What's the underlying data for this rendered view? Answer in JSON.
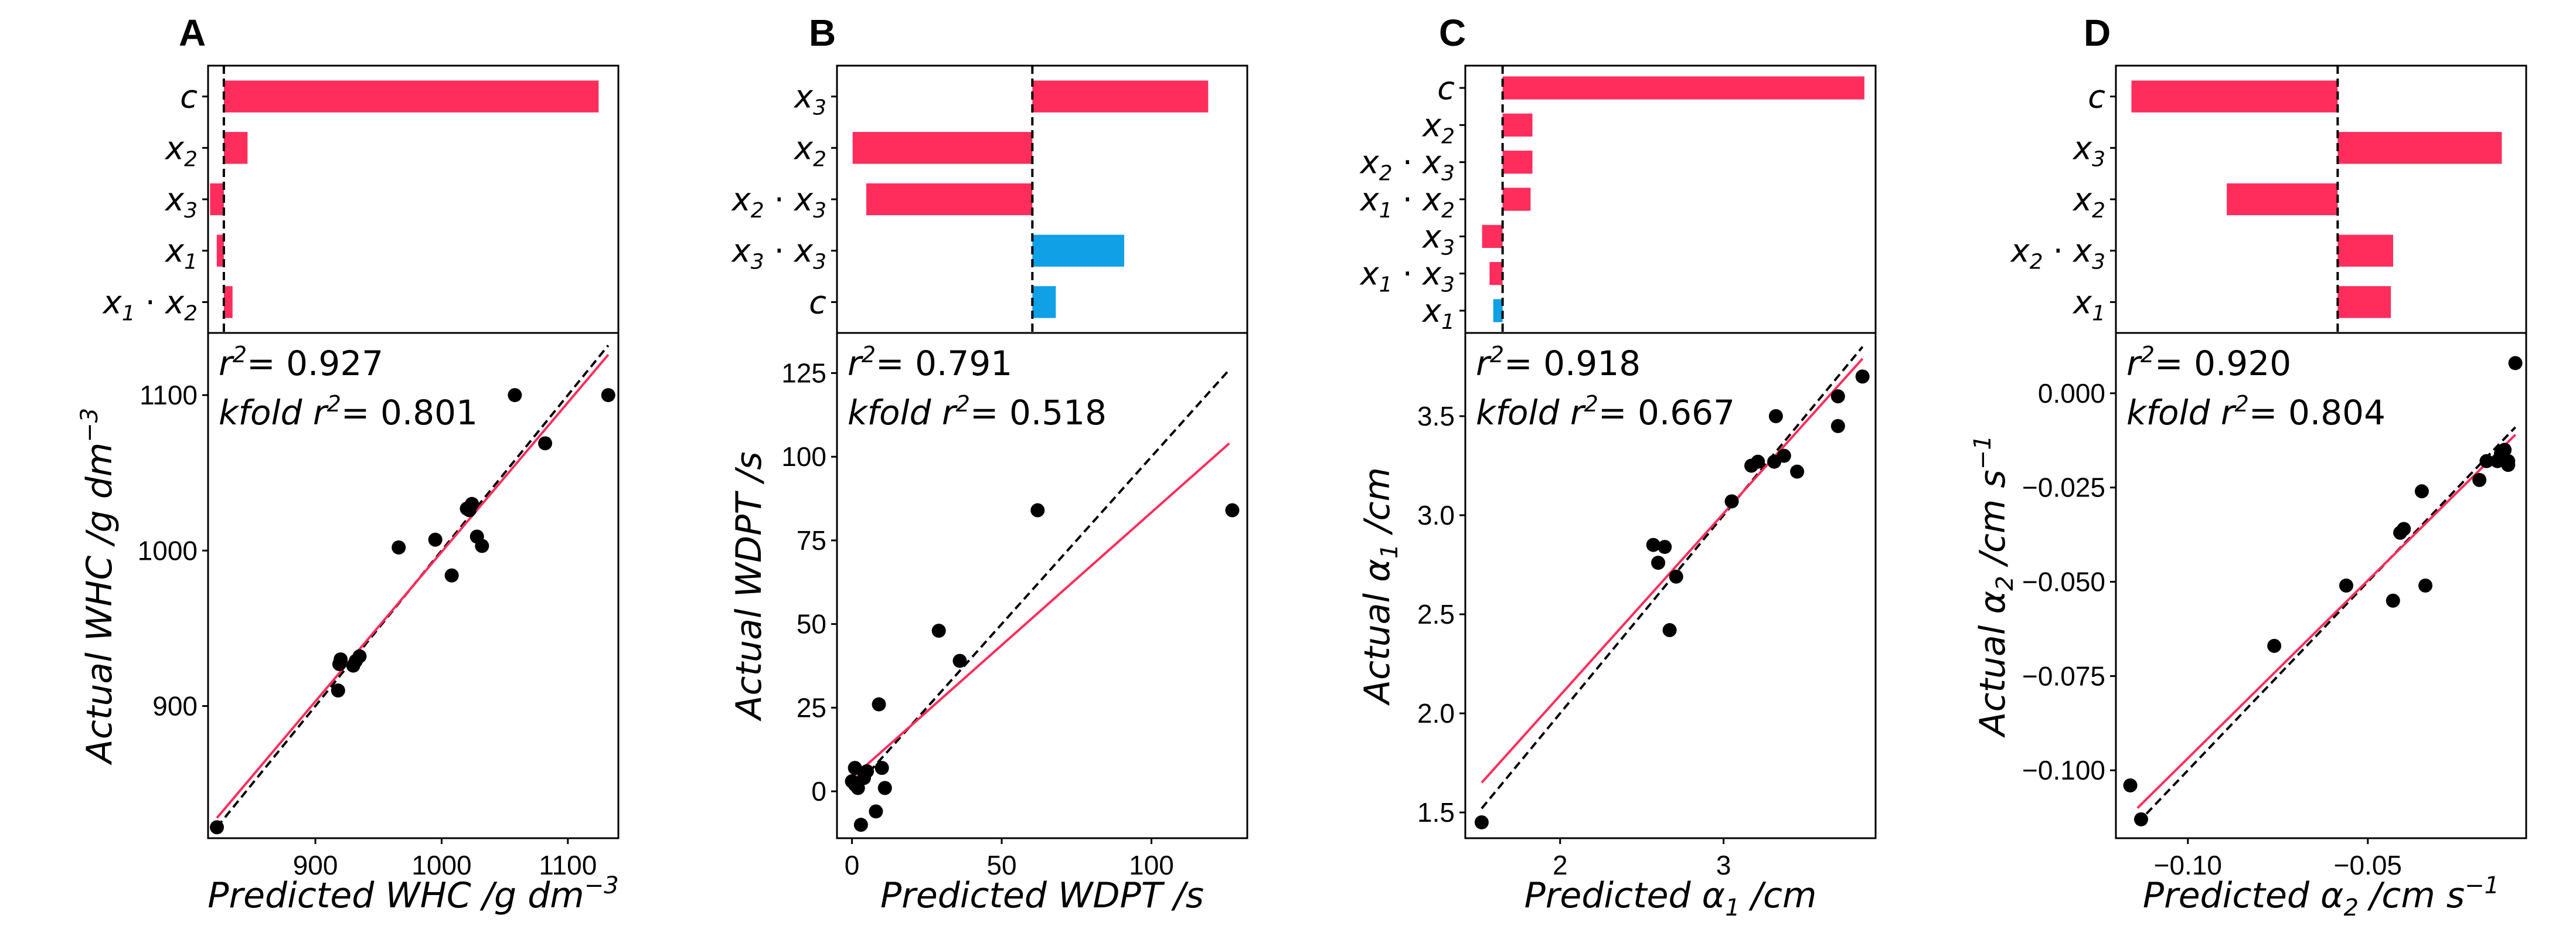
{
  "colors": {
    "positive": "#ff2d5c",
    "negative": "#0fa0e6",
    "fit_line": "#ff2d5c",
    "identity_line": "#000000",
    "points": "#000000"
  },
  "chart_data": [
    {
      "panel_label": "A",
      "bar": {
        "type": "bar",
        "orientation": "horizontal",
        "zero_line": "dashed",
        "xlim": [
          -0.04,
          1.0
        ],
        "terms": [
          {
            "base": "c",
            "label": "c",
            "value": 0.95,
            "sign": "positive"
          },
          {
            "base": "x",
            "sub": "2",
            "label": "x2",
            "value": 0.06,
            "sign": "positive"
          },
          {
            "base": "x",
            "sub": "3",
            "label": "x3",
            "value": -0.035,
            "sign": "positive"
          },
          {
            "base": "x",
            "sub": "1",
            "label": "x1",
            "value": -0.018,
            "sign": "positive"
          },
          {
            "base": "x",
            "sub": "1",
            "base2": "x",
            "sub2": "2",
            "label": "x1 · x2",
            "value": 0.022,
            "sign": "positive"
          }
        ]
      },
      "scatter": {
        "type": "scatter",
        "r2_text": "= 0.927",
        "kfold_text": "= 0.801",
        "xlabel": {
          "prefix": "Predicted ",
          "sym": "WHC",
          "unit": " /g dm",
          "unit_sup": "−3"
        },
        "ylabel": {
          "prefix": "Actual ",
          "sym": "WHC",
          "unit": " /g dm",
          "unit_sup": "−3"
        },
        "xlim": [
          815,
          1140
        ],
        "ylim": [
          815,
          1140
        ],
        "xticks": [
          900,
          1000,
          1100
        ],
        "yticks": [
          900,
          1000,
          1100
        ],
        "tick_labels_x": [
          "900",
          "1000",
          "1100"
        ],
        "tick_labels_y": [
          "900",
          "1000",
          "1100"
        ],
        "identity": [
          [
            822,
            822
          ],
          [
            1132,
            1132
          ]
        ],
        "fit": [
          [
            822,
            828
          ],
          [
            1132,
            1126
          ]
        ],
        "points": [
          [
            822,
            822
          ],
          [
            918,
            910
          ],
          [
            919,
            927
          ],
          [
            920,
            930
          ],
          [
            930,
            926
          ],
          [
            932,
            929
          ],
          [
            935,
            932
          ],
          [
            966,
            1002
          ],
          [
            995,
            1007
          ],
          [
            1008,
            984
          ],
          [
            1020,
            1027
          ],
          [
            1022,
            1026
          ],
          [
            1024,
            1030
          ],
          [
            1028,
            1009
          ],
          [
            1032,
            1003
          ],
          [
            1058,
            1100
          ],
          [
            1082,
            1069
          ],
          [
            1132,
            1100
          ]
        ]
      }
    },
    {
      "panel_label": "B",
      "bar": {
        "type": "bar",
        "orientation": "horizontal",
        "zero_line": "dashed",
        "xlim": [
          -1.0,
          1.1
        ],
        "terms": [
          {
            "base": "x",
            "sub": "3",
            "label": "x3",
            "value": 0.9,
            "sign": "positive"
          },
          {
            "base": "x",
            "sub": "2",
            "label": "x2",
            "value": -0.92,
            "sign": "positive"
          },
          {
            "base": "x",
            "sub": "2",
            "base2": "x",
            "sub2": "3",
            "label": "x2 · x3",
            "value": -0.85,
            "sign": "positive"
          },
          {
            "base": "x",
            "sub": "3",
            "base2": "x",
            "sub2": "3",
            "label": "x3 · x3",
            "value": 0.47,
            "sign": "negative"
          },
          {
            "base": "c",
            "label": "c",
            "value": 0.12,
            "sign": "negative"
          }
        ]
      },
      "scatter": {
        "type": "scatter",
        "r2_text": "= 0.791",
        "kfold_text": "= 0.518",
        "xlabel": {
          "prefix": "Predicted ",
          "sym": "WDPT",
          "unit": " /s",
          "unit_sup": ""
        },
        "ylabel": {
          "prefix": "Actual ",
          "sym": "WDPT",
          "unit": " /s",
          "unit_sup": ""
        },
        "xlim": [
          -5,
          132
        ],
        "ylim": [
          -14,
          137
        ],
        "xticks": [
          0,
          50,
          100
        ],
        "yticks": [
          0,
          25,
          50,
          75,
          100,
          125
        ],
        "tick_labels_x": [
          "0",
          "50",
          "100"
        ],
        "tick_labels_y": [
          "0",
          "25",
          "50",
          "75",
          "100",
          "125"
        ],
        "identity": [
          [
            0,
            0
          ],
          [
            126,
            126
          ]
        ],
        "fit": [
          [
            0,
            4
          ],
          [
            126,
            104
          ]
        ],
        "points": [
          [
            0,
            3
          ],
          [
            1,
            2
          ],
          [
            1,
            7
          ],
          [
            2,
            1
          ],
          [
            3,
            -10
          ],
          [
            4,
            4
          ],
          [
            5,
            6
          ],
          [
            8,
            -6
          ],
          [
            9,
            26
          ],
          [
            10,
            7
          ],
          [
            11,
            1
          ],
          [
            29,
            48
          ],
          [
            36,
            39
          ],
          [
            62,
            84
          ],
          [
            127,
            84
          ]
        ]
      }
    },
    {
      "panel_label": "C",
      "bar": {
        "type": "bar",
        "orientation": "horizontal",
        "zero_line": "dashed",
        "xlim": [
          -0.1,
          1.0
        ],
        "terms": [
          {
            "base": "c",
            "label": "c",
            "value": 0.97,
            "sign": "positive"
          },
          {
            "base": "x",
            "sub": "2",
            "label": "x2",
            "value": 0.08,
            "sign": "positive"
          },
          {
            "base": "x",
            "sub": "2",
            "base2": "x",
            "sub2": "3",
            "label": "x2 · x3",
            "value": 0.08,
            "sign": "positive"
          },
          {
            "base": "x",
            "sub": "1",
            "base2": "x",
            "sub2": "2",
            "label": "x1 · x2",
            "value": 0.075,
            "sign": "positive"
          },
          {
            "base": "x",
            "sub": "3",
            "label": "x3",
            "value": -0.055,
            "sign": "positive"
          },
          {
            "base": "x",
            "sub": "1",
            "base2": "x",
            "sub2": "3",
            "label": "x1 · x3",
            "value": -0.035,
            "sign": "positive"
          },
          {
            "base": "x",
            "sub": "1",
            "label": "x1",
            "value": -0.025,
            "sign": "negative"
          }
        ]
      },
      "scatter": {
        "type": "scatter",
        "r2_text": "= 0.918",
        "kfold_text": "= 0.667",
        "xlabel": {
          "prefix": "Predicted ",
          "sym": "α",
          "sym_sub": "1",
          "unit": " /cm",
          "unit_sup": ""
        },
        "ylabel": {
          "prefix": "Actual ",
          "sym": "α",
          "sym_sub": "1",
          "unit": " /cm",
          "unit_sup": ""
        },
        "xlim": [
          1.42,
          3.93
        ],
        "ylim": [
          1.37,
          3.92
        ],
        "xticks": [
          2,
          3
        ],
        "yticks": [
          1.5,
          2.0,
          2.5,
          3.0,
          3.5
        ],
        "tick_labels_x": [
          "2",
          "3"
        ],
        "tick_labels_y": [
          "1.5",
          "2.0",
          "2.5",
          "3.0",
          "3.5"
        ],
        "identity": [
          [
            1.52,
            1.52
          ],
          [
            3.85,
            3.85
          ]
        ],
        "fit": [
          [
            1.52,
            1.65
          ],
          [
            3.85,
            3.79
          ]
        ],
        "points": [
          [
            1.52,
            1.45
          ],
          [
            2.57,
            2.85
          ],
          [
            2.6,
            2.76
          ],
          [
            2.64,
            2.84
          ],
          [
            2.67,
            2.42
          ],
          [
            2.71,
            2.69
          ],
          [
            3.05,
            3.07
          ],
          [
            3.17,
            3.25
          ],
          [
            3.21,
            3.27
          ],
          [
            3.31,
            3.27
          ],
          [
            3.32,
            3.5
          ],
          [
            3.37,
            3.3
          ],
          [
            3.45,
            3.22
          ],
          [
            3.7,
            3.6
          ],
          [
            3.7,
            3.45
          ],
          [
            3.85,
            3.7
          ]
        ]
      }
    },
    {
      "panel_label": "D",
      "bar": {
        "type": "bar",
        "orientation": "horizontal",
        "zero_line": "dashed",
        "xlim": [
          -1.0,
          0.85
        ],
        "terms": [
          {
            "base": "c",
            "label": "c",
            "value": -0.93,
            "sign": "positive"
          },
          {
            "base": "x",
            "sub": "3",
            "label": "x3",
            "value": 0.74,
            "sign": "positive"
          },
          {
            "base": "x",
            "sub": "2",
            "label": "x2",
            "value": -0.5,
            "sign": "positive"
          },
          {
            "base": "x",
            "sub": "2",
            "base2": "x",
            "sub2": "3",
            "label": "x2 · x3",
            "value": 0.25,
            "sign": "positive"
          },
          {
            "base": "x",
            "sub": "1",
            "label": "x1",
            "value": 0.24,
            "sign": "positive"
          }
        ]
      },
      "scatter": {
        "type": "scatter",
        "r2_text": "= 0.920",
        "kfold_text": "= 0.804",
        "xlabel": {
          "prefix": "Predicted ",
          "sym": "α",
          "sym_sub": "2",
          "unit": " /cm s",
          "unit_sup": "−1"
        },
        "ylabel": {
          "prefix": "Actual ",
          "sym": "α",
          "sym_sub": "2",
          "unit": " /cm s",
          "unit_sup": "−1"
        },
        "xlim": [
          -0.12,
          -0.006
        ],
        "ylim": [
          -0.118,
          0.016
        ],
        "xticks": [
          -0.1,
          -0.05
        ],
        "yticks": [
          -0.1,
          -0.075,
          -0.05,
          -0.025,
          0.0
        ],
        "tick_labels_x": [
          "−0.10",
          "−0.05"
        ],
        "tick_labels_y": [
          "−0.100",
          "−0.075",
          "−0.050",
          "−0.025",
          "0.000"
        ],
        "identity": [
          [
            -0.114,
            -0.114
          ],
          [
            -0.009,
            -0.009
          ]
        ],
        "fit": [
          [
            -0.114,
            -0.11
          ],
          [
            -0.009,
            -0.011
          ]
        ],
        "points": [
          [
            -0.116,
            -0.104
          ],
          [
            -0.113,
            -0.113
          ],
          [
            -0.076,
            -0.067
          ],
          [
            -0.056,
            -0.051
          ],
          [
            -0.043,
            -0.055
          ],
          [
            -0.041,
            -0.037
          ],
          [
            -0.04,
            -0.036
          ],
          [
            -0.035,
            -0.026
          ],
          [
            -0.034,
            -0.051
          ],
          [
            -0.019,
            -0.023
          ],
          [
            -0.017,
            -0.018
          ],
          [
            -0.014,
            -0.018
          ],
          [
            -0.013,
            -0.016
          ],
          [
            -0.012,
            -0.015
          ],
          [
            -0.011,
            -0.019
          ],
          [
            -0.011,
            -0.018
          ],
          [
            -0.009,
            0.008
          ]
        ]
      }
    }
  ]
}
